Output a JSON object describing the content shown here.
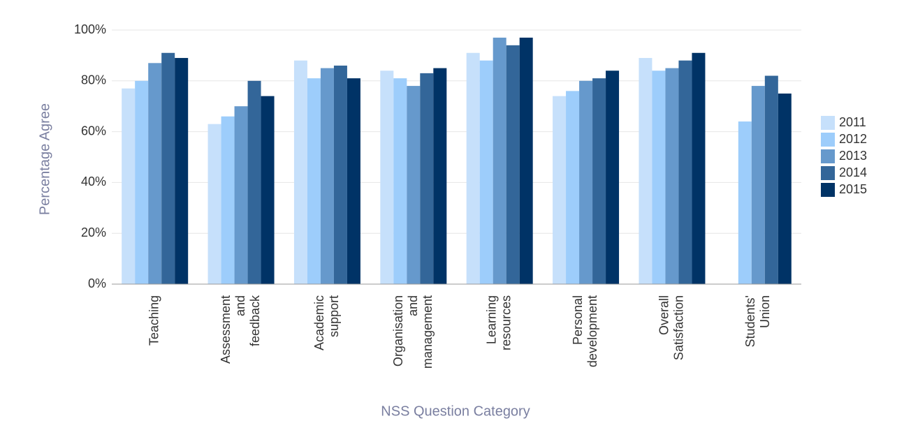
{
  "chart_data": {
    "type": "bar",
    "x_label": "NSS Question Category",
    "y_label": "Percentage Agree",
    "categories": [
      "Teaching",
      "Assessment and feedback",
      "Academic support",
      "Organisation and management",
      "Learning resources",
      "Personal development",
      "Overall Satisfaction",
      "Students' Union"
    ],
    "series": [
      {
        "name": "2011",
        "color": "#c6e0fb",
        "values": [
          77,
          63,
          88,
          84,
          91,
          74,
          89,
          null
        ]
      },
      {
        "name": "2012",
        "color": "#9dcdfb",
        "values": [
          80,
          66,
          81,
          81,
          88,
          76,
          84,
          64
        ]
      },
      {
        "name": "2013",
        "color": "#6699cc",
        "values": [
          87,
          70,
          85,
          78,
          97,
          80,
          85,
          78
        ]
      },
      {
        "name": "2014",
        "color": "#336699",
        "values": [
          91,
          80,
          86,
          83,
          94,
          81,
          88,
          82
        ]
      },
      {
        "name": "2015",
        "color": "#003366",
        "values": [
          89,
          74,
          81,
          85,
          97,
          84,
          91,
          75
        ]
      }
    ],
    "ylim": [
      0,
      100
    ],
    "yticks": [
      {
        "value": 0,
        "label": "0%"
      },
      {
        "value": 20,
        "label": "20%"
      },
      {
        "value": 40,
        "label": "40%"
      },
      {
        "value": 60,
        "label": "60%"
      },
      {
        "value": 80,
        "label": "80%"
      },
      {
        "value": 100,
        "label": "100%"
      }
    ],
    "grid": true,
    "legend": "right"
  }
}
